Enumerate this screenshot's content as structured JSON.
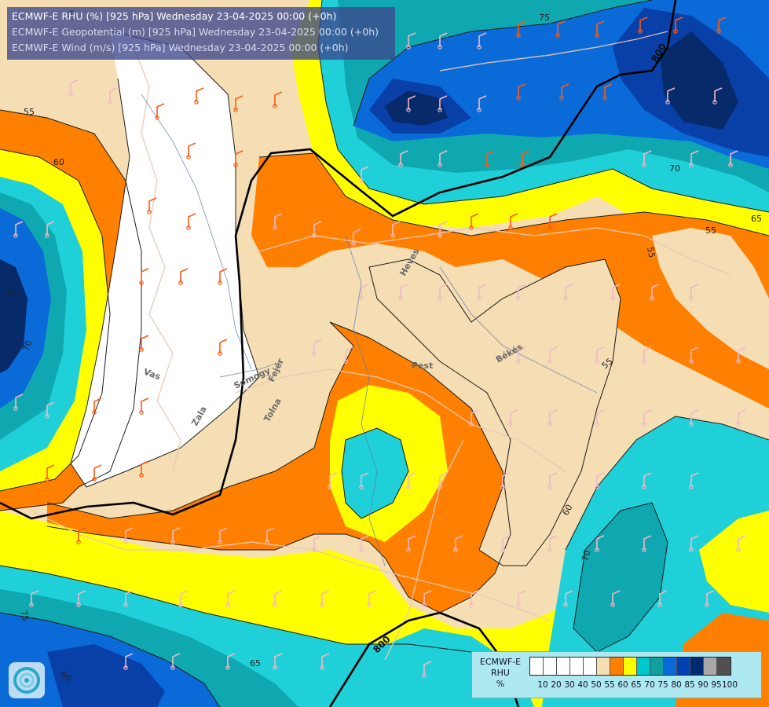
{
  "titles": {
    "line1": "ECMWF-E RHU (%) [925 hPa] Wednesday 23-04-2025 00:00 (+0h)",
    "line2": "ECMWF-E Geopotential (m) [925 hPa] Wednesday 23-04-2025 00:00 (+0h)",
    "line3": "ECMWF-E Wind (m/s) [925 hPa] Wednesday 23-04-2025 00:00 (+0h)"
  },
  "legend": {
    "label_lines": [
      "ECMWF-E",
      "RHU",
      "%"
    ],
    "ticks": [
      "10",
      "20",
      "30",
      "40",
      "50",
      "55",
      "60",
      "65",
      "70",
      "75",
      "80",
      "85",
      "90",
      "95",
      "100"
    ],
    "colors": [
      "#ffffff",
      "#ffffff",
      "#ffffff",
      "#ffffff",
      "#ffffff",
      "#f5deb3",
      "#ff8000",
      "#ffff00",
      "#00c8c8",
      "#10a0a0",
      "#0a68d8",
      "#0040b0",
      "#002a70",
      "#a8a8a8",
      "#505050"
    ]
  },
  "contour_labels": [
    "55",
    "60",
    "65",
    "70",
    "75",
    "55",
    "60",
    "55",
    "60",
    "65",
    "70",
    "75",
    "55",
    "65",
    "60",
    "70",
    "60"
  ],
  "geopotential_labels": [
    "800",
    "800"
  ],
  "place_labels": [
    "Heves",
    "Pest",
    "Békés",
    "Vas",
    "Zala",
    "Somogy",
    "Fejér",
    "Tolna"
  ],
  "palette": {
    "white": "#ffffff",
    "tan": "#f5deb3",
    "orange": "#ff8000",
    "yellow": "#ffff00",
    "cyan": "#20d0d8",
    "teal": "#10a8b0",
    "blue": "#0a6ad8",
    "darkblue": "#0840a8",
    "navy": "#062a6a"
  }
}
